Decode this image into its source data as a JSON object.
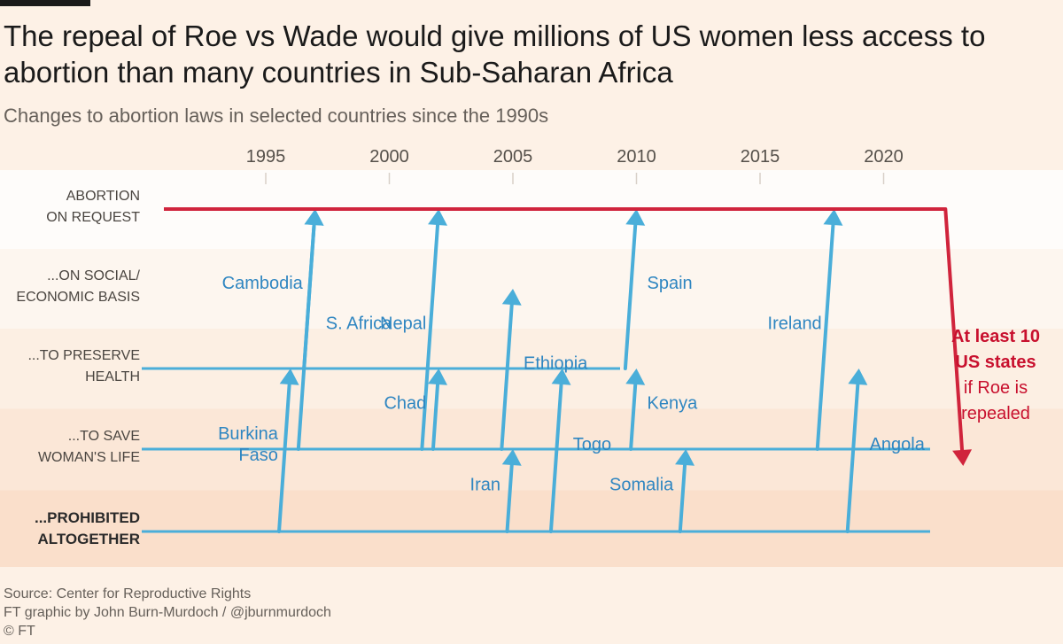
{
  "title": "The repeal of Roe vs Wade would give millions of US women less access to abortion than many countries in Sub-Saharan Africa",
  "subtitle": "Changes to abortion laws in selected countries since the 1990s",
  "footer": {
    "source": "Source: Center for Reproductive Rights",
    "credit": "FT graphic by John Burn-Murdoch / @jburnmurdoch",
    "copyright": "© FT"
  },
  "colors": {
    "background": "#fdf1e6",
    "country_line": "#4aaed9",
    "us_line": "#d0243c",
    "label_text": "#2f86c1",
    "us_text": "#c8102e"
  },
  "chart_data": {
    "type": "line",
    "title": "Changes to abortion laws in selected countries since the 1990s",
    "x_ticks": [
      1995,
      2000,
      2005,
      2010,
      2015,
      2020
    ],
    "levels": [
      "ABORTION ON REQUEST",
      "...ON SOCIAL/ ECONOMIC BASIS",
      "...TO PRESERVE HEALTH",
      "...TO SAVE WOMAN'S LIFE",
      "...PROHIBITED ALTOGETHER"
    ],
    "level_labels": [
      [
        "ABORTION",
        "ON REQUEST"
      ],
      [
        "...ON SOCIAL/",
        "ECONOMIC BASIS"
      ],
      [
        "...TO PRESERVE",
        "HEALTH"
      ],
      [
        "...TO SAVE",
        "WOMAN'S LIFE"
      ],
      [
        "...PROHIBITED",
        "ALTOGETHER"
      ]
    ],
    "grid": false,
    "countries": [
      {
        "name": "Cambodia",
        "label_lines": [
          "Cambodia"
        ],
        "from_level": 2,
        "to_level": 0,
        "year": 1997
      },
      {
        "name": "Burkina Faso",
        "label_lines": [
          "Burkina",
          "Faso"
        ],
        "from_level": 4,
        "to_level": 2,
        "year": 1996
      },
      {
        "name": "S. Africa",
        "label_lines": [
          "S. Africa"
        ],
        "from_level": 3,
        "to_level": 0,
        "year": 1997
      },
      {
        "name": "Nepal",
        "label_lines": [
          "Nepal"
        ],
        "from_level": 3,
        "to_level": 0,
        "year": 2002
      },
      {
        "name": "Ethiopia",
        "label_lines": [
          "Ethiopia"
        ],
        "from_level": 3,
        "to_level": 1,
        "year": 2005
      },
      {
        "name": "Chad",
        "label_lines": [
          "Chad"
        ],
        "from_level": 3,
        "to_level": 2,
        "year": 2002
      },
      {
        "name": "Togo",
        "label_lines": [
          "Togo"
        ],
        "from_level": 4,
        "to_level": 2,
        "year": 2007
      },
      {
        "name": "Iran",
        "label_lines": [
          "Iran"
        ],
        "from_level": 4,
        "to_level": 3,
        "year": 2005
      },
      {
        "name": "Spain",
        "label_lines": [
          "Spain"
        ],
        "from_level": 2,
        "to_level": 0,
        "year": 2010
      },
      {
        "name": "Kenya",
        "label_lines": [
          "Kenya"
        ],
        "from_level": 3,
        "to_level": 2,
        "year": 2010
      },
      {
        "name": "Somalia",
        "label_lines": [
          "Somalia"
        ],
        "from_level": 4,
        "to_level": 3,
        "year": 2012
      },
      {
        "name": "Ireland",
        "label_lines": [
          "Ireland"
        ],
        "from_level": 3,
        "to_level": 0,
        "year": 2018
      },
      {
        "name": "Angola",
        "label_lines": [
          "Angola"
        ],
        "from_level": 4,
        "to_level": 2,
        "year": 2019
      }
    ],
    "us": {
      "label_lines": [
        "At least 10",
        "US states",
        "if Roe is",
        "repealed"
      ],
      "from_level": 0,
      "to_level": 4,
      "year": 2022
    }
  }
}
